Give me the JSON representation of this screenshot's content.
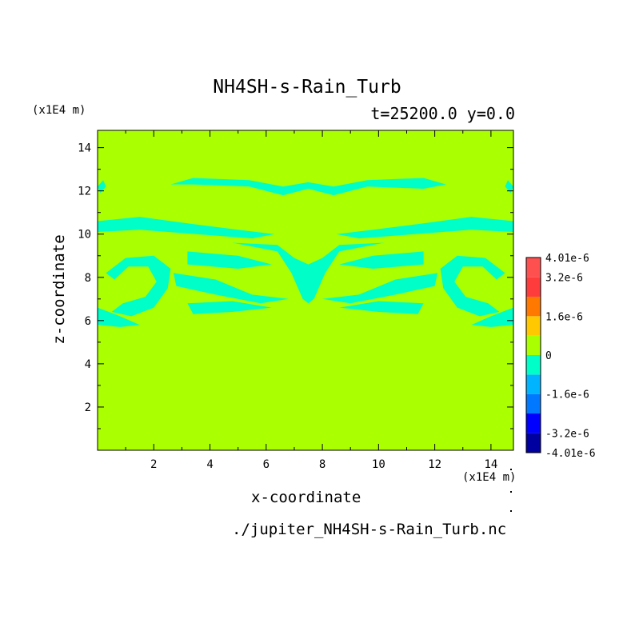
{
  "chart_data": {
    "type": "heatmap",
    "title": "NH4SH-s-Rain_Turb",
    "subtitle": "t=25200.0 y=0.0",
    "xlabel": "x-coordinate",
    "ylabel": "z-coordinate",
    "x_unit": "(x1E4 m)",
    "y_unit": "(x1E4 m)",
    "xlim": [
      0,
      14.8
    ],
    "ylim": [
      0,
      14.8
    ],
    "x_ticks": [
      2,
      4,
      6,
      8,
      10,
      12,
      14
    ],
    "y_ticks": [
      2,
      4,
      6,
      8,
      10,
      12,
      14
    ],
    "x_tick_labels": [
      "2",
      "4",
      "6",
      "8",
      "10",
      "12",
      "14"
    ],
    "y_tick_labels": [
      "2",
      "4",
      "6",
      "8",
      "10",
      "12",
      "14"
    ],
    "background_value": 0,
    "background_color": "#aaff00",
    "negative_color": "#00ffc8",
    "colorbar": {
      "labels": [
        "4.01e-6",
        "3.2e-6",
        "1.6e-6",
        "0",
        "-1.6e-6",
        "-3.2e-6",
        "-4.01e-6"
      ],
      "label_values": [
        4.01e-06,
        3.2e-06,
        1.6e-06,
        0,
        -1.6e-06,
        -3.2e-06,
        -4.01e-06
      ],
      "bounds": [
        -4.01e-06,
        -3.2e-06,
        -2.4e-06,
        -1.6e-06,
        -8e-07,
        0,
        8e-07,
        1.6e-06,
        2.4e-06,
        3.2e-06,
        4.01e-06
      ],
      "colors": [
        "#0000a0",
        "#0000ff",
        "#0078ff",
        "#00b4ff",
        "#00ffc8",
        "#aaff00",
        "#ffc800",
        "#ff7800",
        "#ff3c3c",
        "#ff5050"
      ]
    },
    "regions": [
      {
        "label": "upper band",
        "value_sign": "negative",
        "points": [
          [
            2.6,
            12.3
          ],
          [
            3.4,
            12.6
          ],
          [
            5.4,
            12.5
          ],
          [
            6.6,
            12.2
          ],
          [
            7.5,
            12.4
          ],
          [
            8.4,
            12.2
          ],
          [
            9.6,
            12.5
          ],
          [
            11.6,
            12.6
          ],
          [
            12.4,
            12.3
          ],
          [
            11.6,
            12.1
          ],
          [
            9.6,
            12.2
          ],
          [
            8.4,
            11.8
          ],
          [
            7.5,
            12.1
          ],
          [
            6.6,
            11.8
          ],
          [
            5.4,
            12.2
          ],
          [
            3.4,
            12.3
          ]
        ]
      },
      {
        "label": "left edge blob 12",
        "value_sign": "negative",
        "points": [
          [
            0,
            12.2
          ],
          [
            0.2,
            12.5
          ],
          [
            0.3,
            12.2
          ],
          [
            0.1,
            11.9
          ]
        ]
      },
      {
        "label": "right edge blob 12",
        "value_sign": "negative",
        "points": [
          [
            14.8,
            12.2
          ],
          [
            14.6,
            12.5
          ],
          [
            14.5,
            12.2
          ],
          [
            14.7,
            11.9
          ]
        ]
      },
      {
        "label": "left upper streak",
        "value_sign": "negative",
        "points": [
          [
            0,
            10.6
          ],
          [
            1.5,
            10.8
          ],
          [
            3.2,
            10.5
          ],
          [
            5.0,
            10.2
          ],
          [
            6.3,
            10.0
          ],
          [
            5.5,
            9.8
          ],
          [
            3.5,
            10.0
          ],
          [
            1.5,
            10.2
          ],
          [
            0,
            10.1
          ]
        ]
      },
      {
        "label": "right upper streak",
        "value_sign": "negative",
        "points": [
          [
            14.8,
            10.6
          ],
          [
            13.3,
            10.8
          ],
          [
            11.6,
            10.5
          ],
          [
            9.8,
            10.2
          ],
          [
            8.5,
            10.0
          ],
          [
            9.3,
            9.8
          ],
          [
            11.3,
            10.0
          ],
          [
            13.3,
            10.2
          ],
          [
            14.8,
            10.1
          ]
        ]
      },
      {
        "label": "central funnel",
        "value_sign": "negative",
        "points": [
          [
            4.8,
            9.6
          ],
          [
            6.4,
            9.2
          ],
          [
            6.9,
            8.2
          ],
          [
            7.3,
            7.0
          ],
          [
            7.5,
            6.8
          ],
          [
            7.7,
            7.0
          ],
          [
            8.1,
            8.2
          ],
          [
            8.6,
            9.2
          ],
          [
            10.2,
            9.6
          ],
          [
            8.6,
            9.5
          ],
          [
            8.0,
            8.9
          ],
          [
            7.5,
            8.6
          ],
          [
            7.0,
            8.9
          ],
          [
            6.4,
            9.5
          ]
        ]
      },
      {
        "label": "left mid streak",
        "value_sign": "negative",
        "points": [
          [
            3.2,
            9.2
          ],
          [
            5.0,
            9.0
          ],
          [
            6.2,
            8.6
          ],
          [
            5.0,
            8.4
          ],
          [
            3.2,
            8.6
          ]
        ]
      },
      {
        "label": "right mid streak",
        "value_sign": "negative",
        "points": [
          [
            11.6,
            9.2
          ],
          [
            9.8,
            9.0
          ],
          [
            8.6,
            8.6
          ],
          [
            9.8,
            8.4
          ],
          [
            11.6,
            8.6
          ]
        ]
      },
      {
        "label": "left hook",
        "value_sign": "negative",
        "points": [
          [
            0.3,
            8.2
          ],
          [
            1.0,
            8.9
          ],
          [
            2.0,
            9.0
          ],
          [
            2.6,
            8.4
          ],
          [
            2.5,
            7.5
          ],
          [
            2.0,
            6.6
          ],
          [
            1.2,
            6.2
          ],
          [
            0.5,
            6.4
          ],
          [
            0.9,
            6.8
          ],
          [
            1.7,
            7.1
          ],
          [
            2.1,
            7.8
          ],
          [
            1.8,
            8.5
          ],
          [
            1.1,
            8.5
          ],
          [
            0.6,
            7.9
          ]
        ]
      },
      {
        "label": "right hook",
        "value_sign": "negative",
        "points": [
          [
            14.5,
            8.2
          ],
          [
            13.8,
            8.9
          ],
          [
            12.8,
            9.0
          ],
          [
            12.2,
            8.4
          ],
          [
            12.3,
            7.5
          ],
          [
            12.8,
            6.6
          ],
          [
            13.6,
            6.2
          ],
          [
            14.3,
            6.4
          ],
          [
            13.9,
            6.8
          ],
          [
            13.1,
            7.1
          ],
          [
            12.7,
            7.8
          ],
          [
            13.0,
            8.5
          ],
          [
            13.7,
            8.5
          ],
          [
            14.2,
            7.9
          ]
        ]
      },
      {
        "label": "left lower arm",
        "value_sign": "negative",
        "points": [
          [
            2.7,
            8.2
          ],
          [
            4.2,
            7.9
          ],
          [
            5.5,
            7.2
          ],
          [
            6.8,
            7.0
          ],
          [
            5.8,
            6.8
          ],
          [
            4.2,
            7.2
          ],
          [
            2.8,
            7.6
          ]
        ]
      },
      {
        "label": "right lower arm",
        "value_sign": "negative",
        "points": [
          [
            12.1,
            8.2
          ],
          [
            10.6,
            7.9
          ],
          [
            9.3,
            7.2
          ],
          [
            8.0,
            7.0
          ],
          [
            9.0,
            6.8
          ],
          [
            10.6,
            7.2
          ],
          [
            12.0,
            7.6
          ]
        ]
      },
      {
        "label": "left lower streak",
        "value_sign": "negative",
        "points": [
          [
            3.2,
            6.8
          ],
          [
            4.8,
            6.9
          ],
          [
            6.2,
            6.6
          ],
          [
            4.8,
            6.4
          ],
          [
            3.4,
            6.3
          ]
        ]
      },
      {
        "label": "right lower streak",
        "value_sign": "negative",
        "points": [
          [
            11.6,
            6.8
          ],
          [
            10.0,
            6.9
          ],
          [
            8.6,
            6.6
          ],
          [
            10.0,
            6.4
          ],
          [
            11.4,
            6.3
          ]
        ]
      },
      {
        "label": "left bottom tongue",
        "value_sign": "negative",
        "points": [
          [
            0,
            6.6
          ],
          [
            0.8,
            6.2
          ],
          [
            1.5,
            5.8
          ],
          [
            0.8,
            5.7
          ],
          [
            0,
            5.8
          ]
        ]
      },
      {
        "label": "right bottom tongue",
        "value_sign": "negative",
        "points": [
          [
            14.8,
            6.6
          ],
          [
            14.0,
            6.2
          ],
          [
            13.3,
            5.8
          ],
          [
            14.0,
            5.7
          ],
          [
            14.8,
            5.8
          ]
        ]
      }
    ]
  },
  "footer": {
    "source_file": "./jupiter_NH4SH-s-Rain_Turb.nc"
  }
}
